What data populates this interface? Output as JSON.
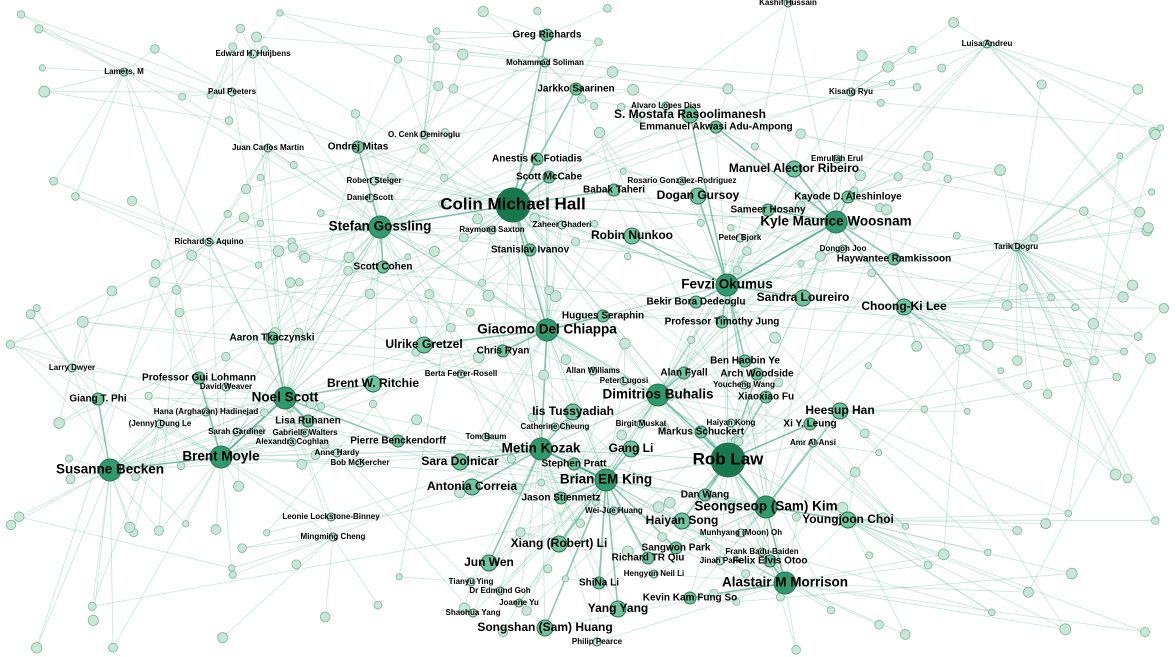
{
  "colors": {
    "edge": "#5fb89a",
    "node_small": "#c8e6d9",
    "node_medium": "#6fc4a2",
    "node_large": "#2f9a70",
    "node_hub": "#17774f",
    "node_stroke": "#2d6e52",
    "label": "#000000"
  },
  "nodes": [
    {
      "id": "rob-law",
      "label": "Rob Law",
      "tier": "hub"
    },
    {
      "id": "colin-michael-hall",
      "label": "Colin Michael Hall",
      "tier": "hub"
    },
    {
      "id": "fevzi-okumus",
      "label": "Fevzi Okumus",
      "tier": "large"
    },
    {
      "id": "brian-em-king",
      "label": "Brian EM King",
      "tier": "large"
    },
    {
      "id": "dimitrios-buhalis",
      "label": "Dimitrios Buhalis",
      "tier": "large"
    },
    {
      "id": "giacomo-del-chiappa",
      "label": "Giacomo Del Chiappa",
      "tier": "large"
    },
    {
      "id": "brent-moyle",
      "label": "Brent Moyle",
      "tier": "large"
    },
    {
      "id": "susanne-becken",
      "label": "Susanne Becken",
      "tier": "large"
    },
    {
      "id": "noel-scott",
      "label": "Noel Scott",
      "tier": "large"
    },
    {
      "id": "metin-kozak",
      "label": "Metin Kozak",
      "tier": "large"
    },
    {
      "id": "seongseop-kim",
      "label": "Seongseop (Sam) Kim",
      "tier": "large"
    },
    {
      "id": "alastair-m-morrison",
      "label": "Alastair M Morrison",
      "tier": "large"
    },
    {
      "id": "kyle-maurice-woosnam",
      "label": "Kyle Maurice Woosnam",
      "tier": "large"
    },
    {
      "id": "stefan-gossling",
      "label": "Stefan Gossling",
      "tier": "large"
    },
    {
      "id": "manuel-alector-ribeiro",
      "label": "Manuel Alector Ribeiro",
      "tier": "medium"
    },
    {
      "id": "s-mostafa-rasoolimanesh",
      "label": "S. Mostafa Rasoolimanesh",
      "tier": "medium"
    },
    {
      "id": "heesup-han",
      "label": "Heesup Han",
      "tier": "medium"
    },
    {
      "id": "youngjoon-choi",
      "label": "Youngjoon Choi",
      "tier": "medium"
    },
    {
      "id": "choong-ki-lee",
      "label": "Choong-Ki Lee",
      "tier": "medium"
    },
    {
      "id": "sandra-loureiro",
      "label": "Sandra Loureiro",
      "tier": "medium"
    },
    {
      "id": "brent-w-ritchie",
      "label": "Brent W. Ritchie",
      "tier": "medium"
    },
    {
      "id": "ulrike-gretzel",
      "label": "Ulrike Gretzel",
      "tier": "medium"
    },
    {
      "id": "iis-tussyadiah",
      "label": "Iis Tussyadiah",
      "tier": "medium"
    },
    {
      "id": "gang-li",
      "label": "Gang Li",
      "tier": "medium"
    },
    {
      "id": "sara-dolnicar",
      "label": "Sara Dolnicar",
      "tier": "medium"
    },
    {
      "id": "antonia-correia",
      "label": "Antonia Correia",
      "tier": "medium"
    },
    {
      "id": "jun-wen",
      "label": "Jun Wen",
      "tier": "medium"
    },
    {
      "id": "yang-yang",
      "label": "Yang Yang",
      "tier": "medium"
    },
    {
      "id": "songshan-huang",
      "label": "Songshan (Sam) Huang",
      "tier": "medium"
    },
    {
      "id": "xiang-li",
      "label": "Xiang (Robert) Li",
      "tier": "medium"
    },
    {
      "id": "haiyan-song",
      "label": "Haiyan Song",
      "tier": "medium"
    },
    {
      "id": "sangwon-park",
      "label": "Sangwon Park",
      "tier": "small"
    },
    {
      "id": "dogan-gursoy",
      "label": "Dogan Gursoy",
      "tier": "medium"
    },
    {
      "id": "robin-nunkoo",
      "label": "Robin Nunkoo",
      "tier": "medium"
    },
    {
      "id": "anestis-k-fotiadis",
      "label": "Anestis K. Fotiadis",
      "tier": "small"
    },
    {
      "id": "ondrej-mitas",
      "label": "Ondrej Mitas",
      "tier": "small"
    },
    {
      "id": "pierre-benckendorff",
      "label": "Pierre Benckendorff",
      "tier": "small"
    },
    {
      "id": "markus-schuckert",
      "label": "Markus Schuckert",
      "tier": "small"
    },
    {
      "id": "hugues-seraphin",
      "label": "Hugues Seraphin",
      "tier": "small"
    },
    {
      "id": "professor-timothy-jung",
      "label": "Professor Timothy Jung",
      "tier": "small"
    },
    {
      "id": "ben-haobin-ye",
      "label": "Ben Haobin Ye",
      "tier": "small"
    },
    {
      "id": "arch-woodside",
      "label": "Arch Woodside",
      "tier": "small"
    },
    {
      "id": "alan-fyall",
      "label": "Alan Fyall",
      "tier": "small"
    },
    {
      "id": "shina-li",
      "label": "ShiNa Li",
      "tier": "small"
    },
    {
      "id": "kevin-kam-fung-so",
      "label": "Kevin Kam Fung So",
      "tier": "small"
    },
    {
      "id": "felix-elvis-otoo",
      "label": "Felix Elvis Otoo",
      "tier": "small"
    },
    {
      "id": "richard-tr-qiu",
      "label": "Richard TR Qiu",
      "tier": "small"
    },
    {
      "id": "jason-stienmetz",
      "label": "Jason Stienmetz",
      "tier": "small"
    },
    {
      "id": "stephen-pratt",
      "label": "Stephen Pratt",
      "tier": "small"
    },
    {
      "id": "dan-wang",
      "label": "Dan Wang",
      "tier": "small"
    },
    {
      "id": "xiaoxiao-fu",
      "label": "Xiaoxiao Fu",
      "tier": "small"
    },
    {
      "id": "xi-y-leung",
      "label": "Xi Y. Leung",
      "tier": "small"
    },
    {
      "id": "bekir-bora-dedeoglu",
      "label": "Bekir Bora Dedeoglu",
      "tier": "small"
    },
    {
      "id": "sameer-hosany",
      "label": "Sameer Hosany",
      "tier": "small"
    },
    {
      "id": "babak-taheri",
      "label": "Babak Taheri",
      "tier": "small"
    },
    {
      "id": "scott-mccabe",
      "label": "Scott McCabe",
      "tier": "small"
    },
    {
      "id": "stanislav-ivanov",
      "label": "Stanislav Ivanov",
      "tier": "small"
    },
    {
      "id": "scott-cohen",
      "label": "Scott Cohen",
      "tier": "small"
    },
    {
      "id": "aaron-tkaczynski",
      "label": "Aaron Tkaczynski",
      "tier": "small"
    },
    {
      "id": "giang-t-phi",
      "label": "Giang T. Phi",
      "tier": "small"
    },
    {
      "id": "professor-gui-lohmann",
      "label": "Professor Gui Lohmann",
      "tier": "small"
    },
    {
      "id": "lisa-ruhanen",
      "label": "Lisa Ruhanen",
      "tier": "small"
    },
    {
      "id": "chris-ryan",
      "label": "Chris Ryan",
      "tier": "small"
    },
    {
      "id": "jarkko-saarinen",
      "label": "Jarkko Saarinen",
      "tier": "small"
    },
    {
      "id": "greg-richards",
      "label": "Greg Richards",
      "tier": "small"
    },
    {
      "id": "emmanuel-akwasi-adu-ampong",
      "label": "Emmanuel Akwasi Adu-Ampong",
      "tier": "small"
    },
    {
      "id": "kayode-d-aleshinloye",
      "label": "Kayode D. Aleshinloye",
      "tier": "small"
    },
    {
      "id": "haywantee-ramkissoon",
      "label": "Haywantee Ramkissoon",
      "tier": "small"
    },
    {
      "id": "alastair-tiny",
      "label": "Kashif Hussain",
      "tier": "tiny"
    },
    {
      "id": "luisa-andreu",
      "label": "Luisa Andreu",
      "tier": "tiny"
    },
    {
      "id": "kisang-ryu",
      "label": "Kisang Ryu",
      "tier": "tiny"
    },
    {
      "id": "emrullah-erul",
      "label": "Emrullah Erul",
      "tier": "tiny"
    },
    {
      "id": "dongoh-joo",
      "label": "Dongoh Joo",
      "tier": "tiny"
    },
    {
      "id": "tarik-dogru",
      "label": "Tarik Dogru",
      "tier": "tiny"
    },
    {
      "id": "peter-bjork",
      "label": "Peter Bjork",
      "tier": "tiny"
    },
    {
      "id": "rosario-gonzalez-rodriguez",
      "label": "Rosario Gonzalez-Rodriguez",
      "tier": "tiny"
    },
    {
      "id": "alvaro-lopes-dias",
      "label": "Alvaro Lopes Dias",
      "tier": "tiny"
    },
    {
      "id": "mohammad-soliman",
      "label": "Mohammad Soliman",
      "tier": "tiny"
    },
    {
      "id": "edward-h-huijbens",
      "label": "Edward H. Huijbens",
      "tier": "tiny"
    },
    {
      "id": "lamers-m",
      "label": "Lamers, M",
      "tier": "tiny"
    },
    {
      "id": "paul-peeters",
      "label": "Paul Peeters",
      "tier": "tiny"
    },
    {
      "id": "o-cenk-demiroglu",
      "label": "O. Cenk Demiroglu",
      "tier": "tiny"
    },
    {
      "id": "juan-carlos-martin",
      "label": "Juan Carlos Martin",
      "tier": "tiny"
    },
    {
      "id": "robert-steiger",
      "label": "Robert Steiger",
      "tier": "tiny"
    },
    {
      "id": "daniel-scott",
      "label": "Daniel Scott",
      "tier": "tiny"
    },
    {
      "id": "richard-s-aquino",
      "label": "Richard S. Aquino",
      "tier": "tiny"
    },
    {
      "id": "raymond-saxton",
      "label": "Raymond Saxton",
      "tier": "tiny"
    },
    {
      "id": "zaheer-ghaderi",
      "label": "Zaheer Ghaderi",
      "tier": "tiny"
    },
    {
      "id": "larry-dwyer",
      "label": "Larry Dwyer",
      "tier": "tiny"
    },
    {
      "id": "david-weaver",
      "label": "David Weaver",
      "tier": "tiny"
    },
    {
      "id": "hana-hadinejad",
      "label": "Hana (Arghavan) Hadinejad",
      "tier": "tiny"
    },
    {
      "id": "jenny-dung-le",
      "label": "(Jenny) Dung Le",
      "tier": "tiny"
    },
    {
      "id": "sarah-gardiner",
      "label": "Sarah Gardiner",
      "tier": "tiny"
    },
    {
      "id": "gabrielle-walters",
      "label": "Gabrielle Walters",
      "tier": "tiny"
    },
    {
      "id": "alexandra-coghlan",
      "label": "Alexandra Coghlan",
      "tier": "tiny"
    },
    {
      "id": "anne-hardy",
      "label": "Anne Hardy",
      "tier": "tiny"
    },
    {
      "id": "bob-mckercher",
      "label": "Bob McKercher",
      "tier": "tiny"
    },
    {
      "id": "berta-ferrer-rosell",
      "label": "Berta Ferrer-Rosell",
      "tier": "tiny"
    },
    {
      "id": "allan-williams",
      "label": "Allan Williams",
      "tier": "tiny"
    },
    {
      "id": "peter-lugosi",
      "label": "Peter Lugosi",
      "tier": "tiny"
    },
    {
      "id": "catherine-cheung",
      "label": "Catherine Cheung",
      "tier": "tiny"
    },
    {
      "id": "tom-baum",
      "label": "Tom Baum",
      "tier": "tiny"
    },
    {
      "id": "birgit-muskat",
      "label": "Birgit Muskat",
      "tier": "tiny"
    },
    {
      "id": "haiyan-kong",
      "label": "Haiyan Kong",
      "tier": "tiny"
    },
    {
      "id": "youcheng-wang",
      "label": "Youcheng Wang",
      "tier": "tiny"
    },
    {
      "id": "amr-al-ansi",
      "label": "Amr Al-Ansi",
      "tier": "tiny"
    },
    {
      "id": "leonie-lockstone-binney",
      "label": "Leonie Lockstone-Binney",
      "tier": "tiny"
    },
    {
      "id": "mingming-cheng",
      "label": "Mingming Cheng",
      "tier": "tiny"
    },
    {
      "id": "wei-jue-huang",
      "label": "Wei-Jue Huang",
      "tier": "tiny"
    },
    {
      "id": "munhyang-oh",
      "label": "Munhyang (Moon) Oh",
      "tier": "tiny"
    },
    {
      "id": "frank-badu-baiden",
      "label": "Frank Badu-Baiden",
      "tier": "tiny"
    },
    {
      "id": "jinah-park",
      "label": "Jinah Park",
      "tier": "tiny"
    },
    {
      "id": "hengyun-neil-li",
      "label": "Hengyun Neil Li",
      "tier": "tiny"
    },
    {
      "id": "tianyu-ying",
      "label": "Tianyu Ying",
      "tier": "tiny"
    },
    {
      "id": "dr-edmund-goh",
      "label": "Dr Edmund Goh",
      "tier": "tiny"
    },
    {
      "id": "joanne-yu",
      "label": "Joanne Yu",
      "tier": "tiny"
    },
    {
      "id": "shaohua-yang",
      "label": "Shaohua Yang",
      "tier": "tiny"
    },
    {
      "id": "philip-pearce",
      "label": "Philip Pearce",
      "tier": "tiny"
    }
  ]
}
